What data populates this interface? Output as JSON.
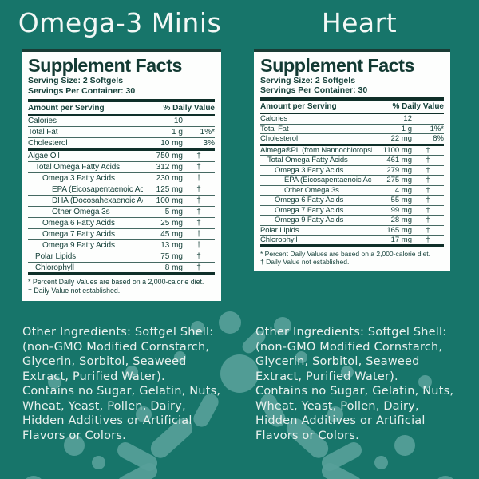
{
  "colors": {
    "background": "#17756A",
    "splash": "#57A099",
    "label_text": "#16413A",
    "title_text": "#F3F8F6"
  },
  "panels": [
    {
      "title": "Omega-3 Minis",
      "facts": {
        "title": "Supplement Facts",
        "serving_size": "Serving Size: 2 Softgels",
        "servings_per_container": "Servings Per Container: 30",
        "amount_header": "Amount per Serving",
        "dv_header": "% Daily Value",
        "rows": [
          {
            "name": "Calories",
            "indent": 0,
            "amount": "10",
            "dv": ""
          },
          {
            "name": "Total Fat",
            "indent": 0,
            "amount": "1 g",
            "dv": "1%*"
          },
          {
            "name": "Cholesterol",
            "indent": 0,
            "amount": "10 mg",
            "dv": "3%"
          },
          {
            "name": "Algae Oil",
            "indent": 0,
            "amount": "750 mg",
            "dv": "†",
            "section_start": true
          },
          {
            "name": "Total Omega Fatty Acids",
            "indent": 1,
            "amount": "312 mg",
            "dv": "†"
          },
          {
            "name": "Omega 3 Fatty Acids",
            "indent": 2,
            "amount": "230 mg",
            "dv": "†"
          },
          {
            "name": "EPA (Eicosapentaenoic Acid)",
            "indent": 3,
            "amount": "125 mg",
            "dv": "†"
          },
          {
            "name": "DHA (Docosahexaenoic Acid)",
            "indent": 3,
            "amount": "100 mg",
            "dv": "†"
          },
          {
            "name": "Other Omega 3s",
            "indent": 3,
            "amount": "5 mg",
            "dv": "†"
          },
          {
            "name": "Omega 6 Fatty Acids",
            "indent": 2,
            "amount": "25 mg",
            "dv": "†"
          },
          {
            "name": "Omega 7 Fatty Acids",
            "indent": 2,
            "amount": "45 mg",
            "dv": "†"
          },
          {
            "name": "Omega 9 Fatty Acids",
            "indent": 2,
            "amount": "13 mg",
            "dv": "†"
          },
          {
            "name": "Polar Lipids",
            "indent": 1,
            "amount": "75 mg",
            "dv": "†"
          },
          {
            "name": "Chlorophyll",
            "indent": 1,
            "amount": "8 mg",
            "dv": "†"
          }
        ],
        "footnotes": [
          "* Percent Daily Values are based on a 2,000-calorie diet.",
          "† Daily Value not established."
        ]
      },
      "other_ingredients": "Other Ingredients: Softgel Shell:\n(non-GMO Modified Cornstarch,\nGlycerin, Sorbitol, Seaweed\nExtract, Purified Water).\nContains no Sugar, Gelatin, Nuts,\nWheat, Yeast, Pollen, Dairy,\nHidden Additives or Artificial\nFlavors or Colors."
    },
    {
      "title": "Heart",
      "facts": {
        "title": "Supplement Facts",
        "serving_size": "Serving Size: 2 Softgels",
        "servings_per_container": "Servings Per Container: 30",
        "amount_header": "Amount per Serving",
        "dv_header": "% Daily Value",
        "rows": [
          {
            "name": "Calories",
            "indent": 0,
            "amount": "12",
            "dv": ""
          },
          {
            "name": "Total Fat",
            "indent": 0,
            "amount": "1 g",
            "dv": "1%*"
          },
          {
            "name": "Cholesterol",
            "indent": 0,
            "amount": "22 mg",
            "dv": "8%"
          },
          {
            "name": "Almega®PL (from Nannochloropsis)",
            "indent": 0,
            "amount": "1100 mg",
            "dv": "†",
            "section_start": true
          },
          {
            "name": "Total Omega Fatty Acids",
            "indent": 1,
            "amount": "461 mg",
            "dv": "†"
          },
          {
            "name": "Omega 3 Fatty Acids",
            "indent": 2,
            "amount": "279 mg",
            "dv": "†"
          },
          {
            "name": "EPA (Eicosapentaenoic Acid)",
            "indent": 3,
            "amount": "275 mg",
            "dv": "†"
          },
          {
            "name": "Other Omega 3s",
            "indent": 3,
            "amount": "4 mg",
            "dv": "†"
          },
          {
            "name": "Omega 6 Fatty Acids",
            "indent": 2,
            "amount": "55 mg",
            "dv": "†"
          },
          {
            "name": "Omega 7 Fatty Acids",
            "indent": 2,
            "amount": "99 mg",
            "dv": "†"
          },
          {
            "name": "Omega 9 Fatty Acids",
            "indent": 2,
            "amount": "28 mg",
            "dv": "†"
          },
          {
            "name": "Polar Lipids",
            "indent": 0,
            "amount": "165 mg",
            "dv": "†"
          },
          {
            "name": "Chlorophyll",
            "indent": 0,
            "amount": "17 mg",
            "dv": "†"
          }
        ],
        "footnotes": [
          "* Percent Daily Values are based on a 2,000-calorie diet.",
          "† Daily Value not established."
        ]
      },
      "other_ingredients": "Other Ingredients: Softgel Shell:\n(non-GMO Modified Cornstarch,\nGlycerin, Sorbitol, Seaweed\nExtract, Purified Water).\nContains no Sugar, Gelatin, Nuts,\nWheat, Yeast, Pollen, Dairy,\nHidden Additives or Artificial\nFlavors or Colors."
    }
  ]
}
